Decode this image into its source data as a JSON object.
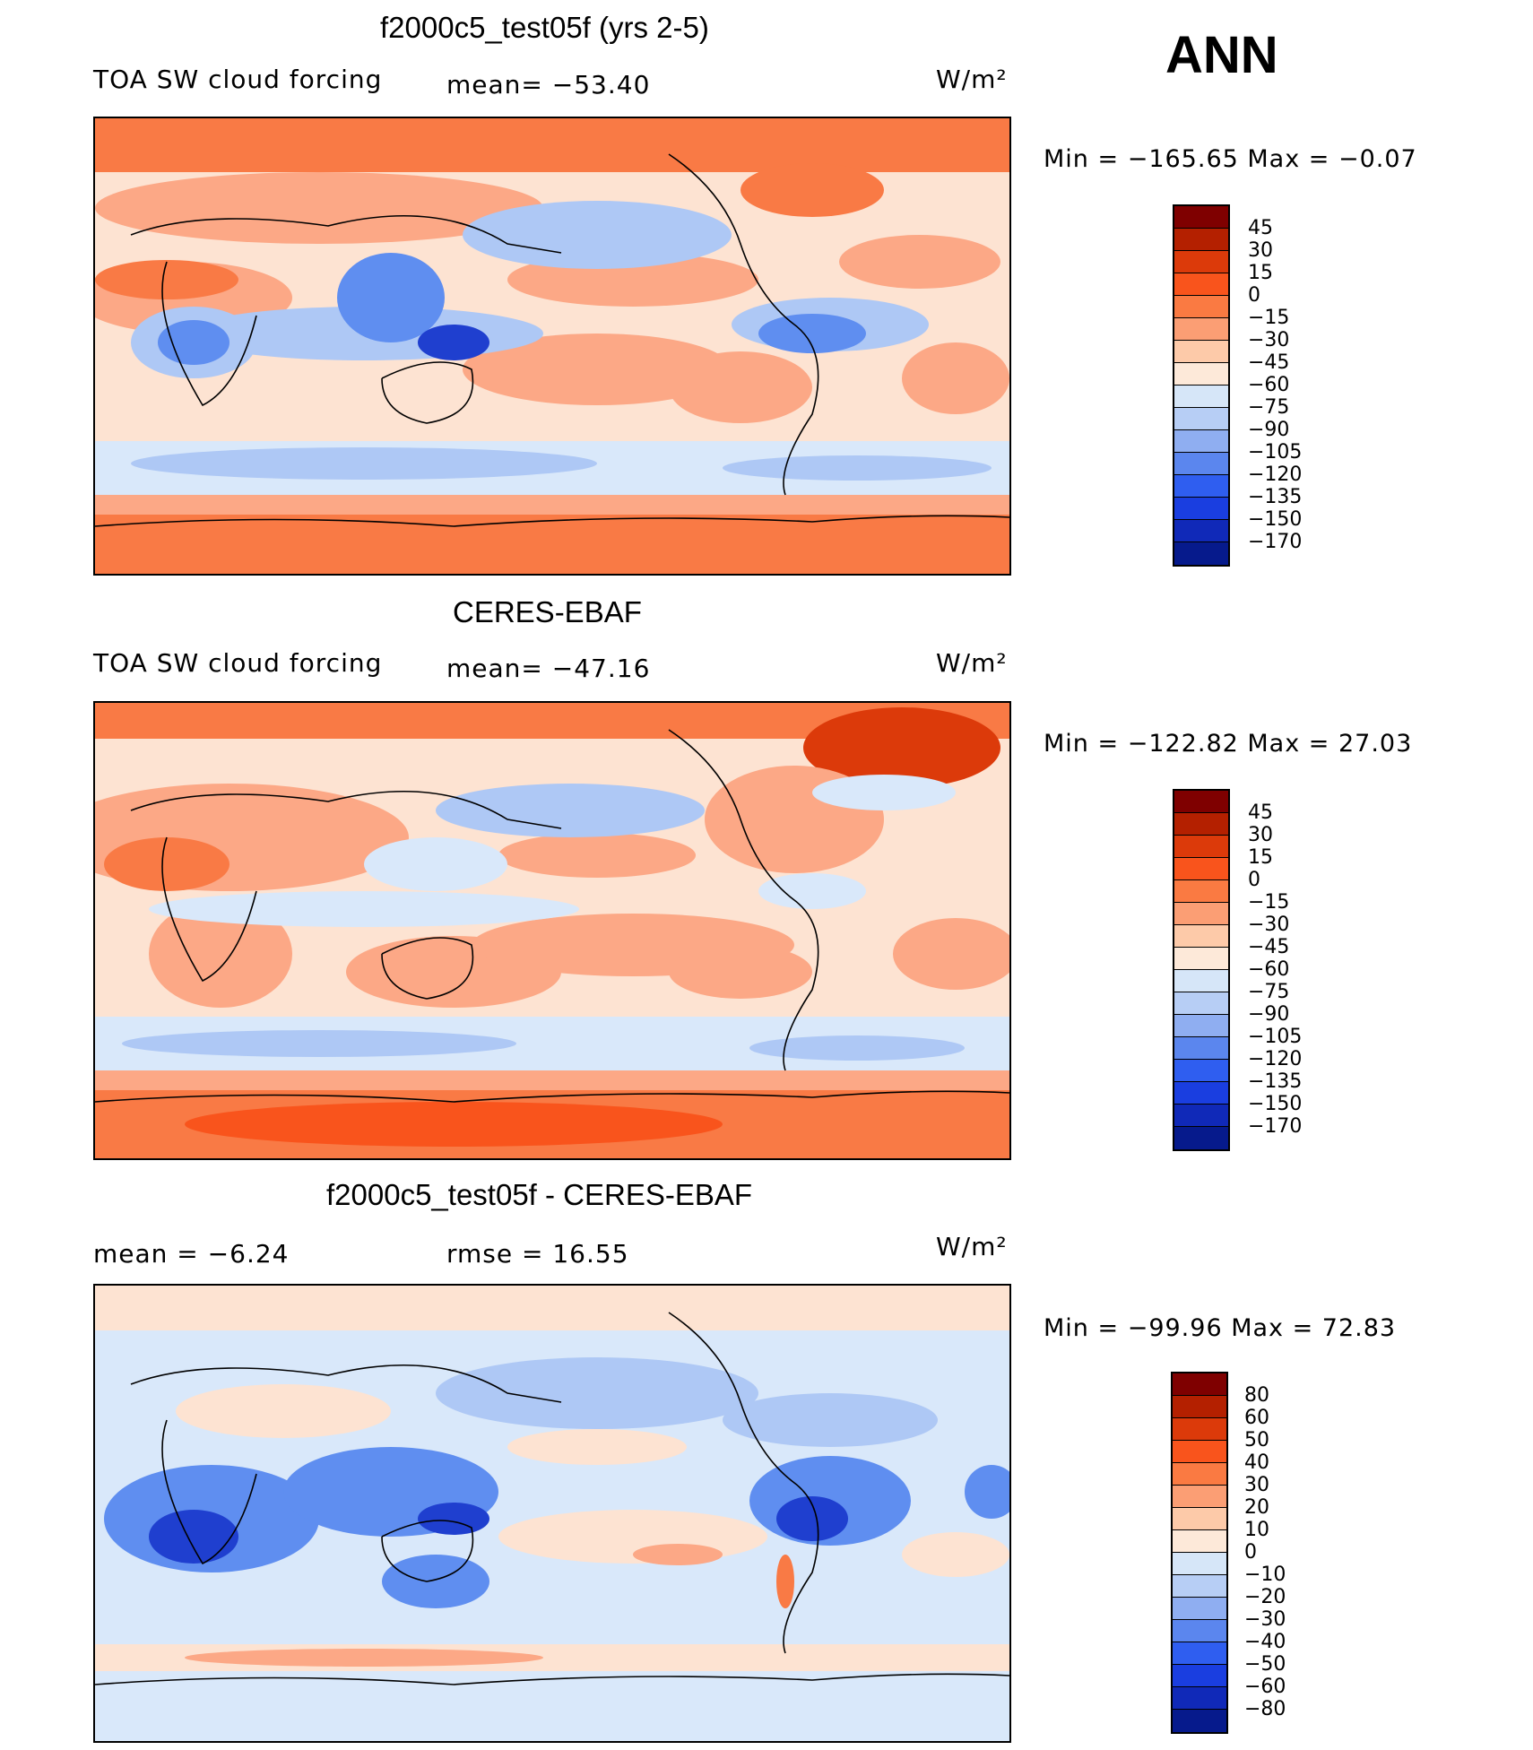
{
  "season": "ANN",
  "units": "W/m²",
  "panels": [
    {
      "title": "f2000c5_test05f (yrs 2-5)",
      "left_label": "TOA SW cloud forcing",
      "mid_label": "mean=  −53.40",
      "minmax": "Min  =  −165.65  Max  =    −0.07",
      "colorbar_colors": [
        "#7f0000",
        "#b42000",
        "#dc3a0a",
        "#f9541c",
        "#fa7a42",
        "#fb9e74",
        "#fdcaa9",
        "#fde9d9",
        "#d6e6f8",
        "#b7cef5",
        "#8faef1",
        "#5b86ee",
        "#2f5ef0",
        "#1a3ee0",
        "#1029b8",
        "#061a8c"
      ],
      "colorbar_labels": [
        "45",
        "30",
        "15",
        "0",
        "−15",
        "−30",
        "−45",
        "−60",
        "−75",
        "−90",
        "−105",
        "−120",
        "−135",
        "−150",
        "−170"
      ]
    },
    {
      "title": "CERES-EBAF",
      "left_label": "TOA SW cloud forcing",
      "mid_label": "mean=  −47.16",
      "minmax": "Min  =  −122.82  Max  =    27.03",
      "colorbar_colors": [
        "#7f0000",
        "#b42000",
        "#dc3a0a",
        "#f9541c",
        "#fa7a42",
        "#fb9e74",
        "#fdcaa9",
        "#fde9d9",
        "#d6e6f8",
        "#b7cef5",
        "#8faef1",
        "#5b86ee",
        "#2f5ef0",
        "#1a3ee0",
        "#1029b8",
        "#061a8c"
      ],
      "colorbar_labels": [
        "45",
        "30",
        "15",
        "0",
        "−15",
        "−30",
        "−45",
        "−60",
        "−75",
        "−90",
        "−105",
        "−120",
        "−135",
        "−150",
        "−170"
      ]
    },
    {
      "title": "f2000c5_test05f - CERES-EBAF",
      "left_label": "mean  =    −6.24",
      "mid_label": "rmse  =    16.55",
      "minmax": "Min  =  −99.96  Max  =    72.83",
      "colorbar_colors": [
        "#7f0000",
        "#b42000",
        "#dc3a0a",
        "#f9541c",
        "#fa7a42",
        "#fb9e74",
        "#fdcaa9",
        "#fde9d9",
        "#d6e6f8",
        "#b7cef5",
        "#8faef1",
        "#5b86ee",
        "#2f5ef0",
        "#1a3ee0",
        "#1029b8",
        "#061a8c"
      ],
      "colorbar_labels": [
        "80",
        "60",
        "50",
        "40",
        "30",
        "20",
        "10",
        "0",
        "−10",
        "−20",
        "−30",
        "−40",
        "−50",
        "−60",
        "−80"
      ]
    }
  ],
  "colors": {
    "deep_orange": "#f97a45",
    "light_orange": "#fca886",
    "peach": "#fde3d2",
    "pale_blue": "#d9e8fa",
    "light_blue": "#aec8f5",
    "mid_blue": "#5f8ef0",
    "dark_blue": "#1f3fcf",
    "coastline": "#000000"
  }
}
